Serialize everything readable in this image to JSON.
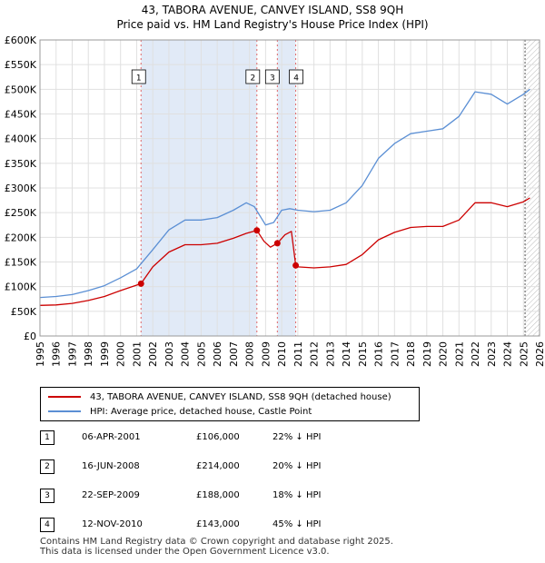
{
  "title_line1": "43, TABORA AVENUE, CANVEY ISLAND, SS8 9QH",
  "title_line2": "Price paid vs. HM Land Registry's House Price Index (HPI)",
  "chart_data": {
    "type": "line",
    "xlim": [
      1995,
      2026
    ],
    "ylim": [
      0,
      600000
    ],
    "y_ticks": [
      0,
      50000,
      100000,
      150000,
      200000,
      250000,
      300000,
      350000,
      400000,
      450000,
      500000,
      550000,
      600000
    ],
    "y_tick_labels": [
      "£0",
      "£50K",
      "£100K",
      "£150K",
      "£200K",
      "£250K",
      "£300K",
      "£350K",
      "£400K",
      "£450K",
      "£500K",
      "£550K",
      "£600K"
    ],
    "x_ticks": [
      1995,
      1996,
      1997,
      1998,
      1999,
      2000,
      2001,
      2002,
      2003,
      2004,
      2005,
      2006,
      2007,
      2008,
      2009,
      2010,
      2011,
      2012,
      2013,
      2014,
      2015,
      2016,
      2017,
      2018,
      2019,
      2020,
      2021,
      2022,
      2023,
      2024,
      2025,
      2026
    ],
    "grid": true,
    "shaded_periods": [
      [
        2001.27,
        2008.46
      ],
      [
        2009.73,
        2010.87
      ]
    ],
    "projection_start": 2025.1,
    "series": [
      {
        "name": "43, TABORA AVENUE, CANVEY ISLAND, SS8 9QH (detached house)",
        "color": "#cc0000",
        "x": [
          1995,
          1996,
          1997,
          1998,
          1999,
          2000,
          2001.27,
          2002,
          2003,
          2004,
          2005,
          2006,
          2007,
          2007.8,
          2008.46,
          2008.9,
          2009.3,
          2009.73,
          2010.2,
          2010.6,
          2010.87,
          2011,
          2012,
          2013,
          2014,
          2015,
          2016,
          2017,
          2018,
          2019,
          2020,
          2021,
          2022,
          2023,
          2024,
          2025,
          2025.4
        ],
        "values": [
          62000,
          63000,
          66000,
          72000,
          80000,
          92000,
          106000,
          140000,
          170000,
          185000,
          185000,
          188000,
          198000,
          208000,
          214000,
          192000,
          180000,
          188000,
          205000,
          212000,
          143000,
          140000,
          138000,
          140000,
          145000,
          165000,
          195000,
          210000,
          220000,
          222000,
          222000,
          235000,
          270000,
          270000,
          262000,
          272000,
          280000
        ]
      },
      {
        "name": "HPI: Average price, detached house, Castle Point",
        "color": "#5b8fd4",
        "x": [
          1995,
          1996,
          1997,
          1998,
          1999,
          2000,
          2001,
          2002,
          2003,
          2004,
          2005,
          2006,
          2007,
          2007.8,
          2008.3,
          2009,
          2009.5,
          2010,
          2010.5,
          2011,
          2012,
          2013,
          2014,
          2015,
          2016,
          2017,
          2018,
          2019,
          2020,
          2021,
          2022,
          2023,
          2024,
          2025,
          2025.4
        ],
        "values": [
          78000,
          80000,
          84000,
          92000,
          102000,
          118000,
          136000,
          175000,
          215000,
          235000,
          235000,
          240000,
          255000,
          270000,
          262000,
          225000,
          230000,
          255000,
          258000,
          255000,
          252000,
          255000,
          270000,
          305000,
          360000,
          390000,
          410000,
          415000,
          420000,
          445000,
          495000,
          490000,
          470000,
          490000,
          500000
        ]
      }
    ],
    "sales": [
      {
        "label": "1",
        "x": 2001.27,
        "value": 106000
      },
      {
        "label": "2",
        "x": 2008.46,
        "value": 214000
      },
      {
        "label": "3",
        "x": 2009.73,
        "value": 188000
      },
      {
        "label": "4",
        "x": 2010.87,
        "value": 143000
      }
    ]
  },
  "legend": {
    "property": "43, TABORA AVENUE, CANVEY ISLAND, SS8 9QH (detached house)",
    "hpi": "HPI: Average price, detached house, Castle Point",
    "property_color": "#cc0000",
    "hpi_color": "#5b8fd4"
  },
  "transactions": [
    {
      "num": "1",
      "date": "06-APR-2001",
      "price": "£106,000",
      "diff": "22% ↓ HPI"
    },
    {
      "num": "2",
      "date": "16-JUN-2008",
      "price": "£214,000",
      "diff": "20% ↓ HPI"
    },
    {
      "num": "3",
      "date": "22-SEP-2009",
      "price": "£188,000",
      "diff": "18% ↓ HPI"
    },
    {
      "num": "4",
      "date": "12-NOV-2010",
      "price": "£143,000",
      "diff": "45% ↓ HPI"
    }
  ],
  "footer": {
    "line1": "Contains HM Land Registry data © Crown copyright and database right 2025.",
    "line2": "This data is licensed under the Open Government Licence v3.0."
  }
}
